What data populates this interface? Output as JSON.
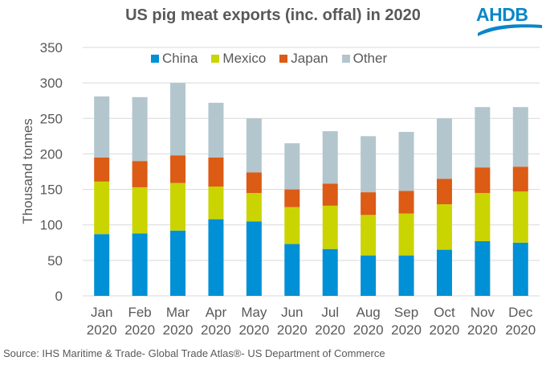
{
  "logo": {
    "text": "AHDB",
    "color": "#0a86c9"
  },
  "source": "Source: IHS  Maritime & Trade- Global Trade Atlas®- US Department of Commerce",
  "chart_data": {
    "type": "bar",
    "stacked": true,
    "title": "US pig meat exports (inc. offal) in 2020",
    "xlabel": "",
    "ylabel": "Thousand tonnes",
    "ylim": [
      0,
      350
    ],
    "yticks": [
      0,
      50,
      100,
      150,
      200,
      250,
      300,
      350
    ],
    "grid": true,
    "legend_position": "top-center",
    "categories": [
      [
        "Jan",
        "2020"
      ],
      [
        "Feb",
        "2020"
      ],
      [
        "Mar",
        "2020"
      ],
      [
        "Apr",
        "2020"
      ],
      [
        "May",
        "2020"
      ],
      [
        "Jun",
        "2020"
      ],
      [
        "Jul",
        "2020"
      ],
      [
        "Aug",
        "2020"
      ],
      [
        "Sep",
        "2020"
      ],
      [
        "Oct",
        "2020"
      ],
      [
        "Nov",
        "2020"
      ],
      [
        "Dec",
        "2020"
      ]
    ],
    "series": [
      {
        "name": "China",
        "color": "#0090d6",
        "values": [
          87,
          88,
          92,
          108,
          105,
          73,
          66,
          57,
          57,
          65,
          77,
          75
        ]
      },
      {
        "name": "Mexico",
        "color": "#cad400",
        "values": [
          74,
          65,
          67,
          46,
          40,
          52,
          61,
          57,
          59,
          64,
          68,
          72
        ]
      },
      {
        "name": "Japan",
        "color": "#dc5b15",
        "values": [
          34,
          37,
          39,
          41,
          29,
          25,
          31,
          32,
          32,
          36,
          36,
          35
        ]
      },
      {
        "name": "Other",
        "color": "#b3c6ce",
        "values": [
          86,
          90,
          102,
          77,
          76,
          65,
          74,
          79,
          83,
          85,
          85,
          84
        ]
      }
    ]
  }
}
